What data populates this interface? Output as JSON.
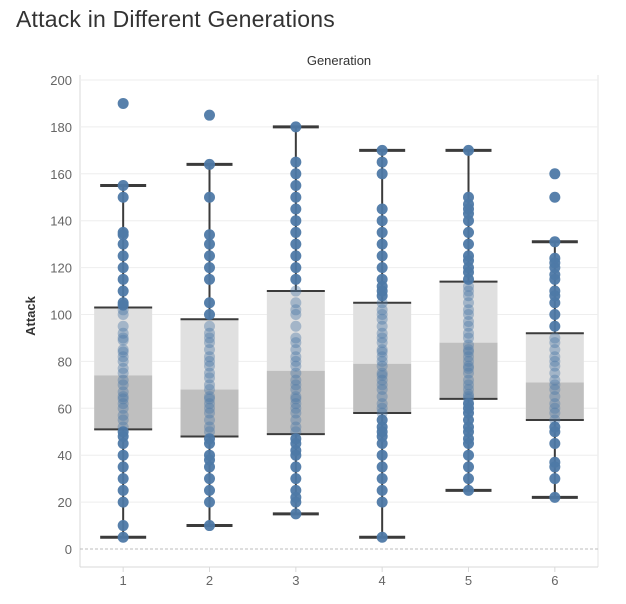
{
  "title": "Attack in Different Generations",
  "colors": {
    "point": "#4e79a7",
    "box_upper": "#e0e0e0",
    "box_lower": "#bfbfbf",
    "whisker": "#3b3b3b",
    "grid": "#eeeeee",
    "zero_line": "#bdbdbd"
  },
  "chart_data": {
    "type": "box",
    "title": "Attack in Different Generations",
    "column_header": "Generation",
    "xlabel": "",
    "ylabel": "Attack",
    "ylim": [
      0,
      200
    ],
    "yticks": [
      0,
      20,
      40,
      60,
      80,
      100,
      120,
      140,
      160,
      180,
      200
    ],
    "categories": [
      "1",
      "2",
      "3",
      "4",
      "5",
      "6"
    ],
    "grid": true,
    "boxes": [
      {
        "category": "1",
        "whisker_low": 5,
        "q1": 51,
        "median": 74,
        "q3": 103,
        "whisker_high": 155
      },
      {
        "category": "2",
        "whisker_low": 10,
        "q1": 48,
        "median": 68,
        "q3": 98,
        "whisker_high": 164
      },
      {
        "category": "3",
        "whisker_low": 15,
        "q1": 49,
        "median": 76,
        "q3": 110,
        "whisker_high": 180
      },
      {
        "category": "4",
        "whisker_low": 5,
        "q1": 58,
        "median": 79,
        "q3": 105,
        "whisker_high": 170
      },
      {
        "category": "5",
        "whisker_low": 25,
        "q1": 64,
        "median": 88,
        "q3": 114,
        "whisker_high": 170
      },
      {
        "category": "6",
        "whisker_low": 22,
        "q1": 55,
        "median": 71,
        "q3": 92,
        "whisker_high": 131
      }
    ],
    "points": [
      [
        5,
        10,
        20,
        25,
        30,
        35,
        40,
        45,
        48,
        50,
        52,
        55,
        57,
        60,
        62,
        64,
        65,
        67,
        70,
        72,
        75,
        77,
        80,
        82,
        84,
        85,
        89,
        90,
        92,
        95,
        100,
        102,
        104,
        105,
        110,
        115,
        120,
        125,
        130,
        134,
        135,
        150,
        155,
        190
      ],
      [
        10,
        20,
        25,
        30,
        35,
        38,
        40,
        45,
        47,
        50,
        52,
        55,
        58,
        60,
        62,
        64,
        65,
        68,
        70,
        73,
        75,
        78,
        80,
        82,
        85,
        88,
        90,
        92,
        95,
        100,
        105,
        115,
        120,
        125,
        130,
        134,
        150,
        164,
        185
      ],
      [
        15,
        20,
        22,
        25,
        30,
        35,
        40,
        42,
        45,
        47,
        50,
        52,
        55,
        58,
        60,
        62,
        64,
        65,
        68,
        70,
        72,
        75,
        78,
        80,
        82,
        85,
        88,
        90,
        95,
        100,
        102,
        105,
        110,
        115,
        120,
        125,
        130,
        135,
        140,
        145,
        150,
        155,
        160,
        165,
        180
      ],
      [
        5,
        20,
        25,
        30,
        35,
        40,
        45,
        48,
        50,
        52,
        55,
        58,
        60,
        62,
        65,
        68,
        70,
        72,
        74,
        75,
        78,
        80,
        82,
        84,
        85,
        88,
        90,
        92,
        95,
        98,
        100,
        102,
        105,
        108,
        110,
        112,
        115,
        120,
        125,
        130,
        135,
        140,
        145,
        160,
        165,
        170
      ],
      [
        25,
        30,
        35,
        40,
        45,
        47,
        50,
        52,
        55,
        58,
        60,
        62,
        64,
        65,
        66,
        68,
        70,
        72,
        75,
        77,
        78,
        80,
        82,
        84,
        85,
        87,
        90,
        92,
        95,
        97,
        100,
        102,
        105,
        108,
        110,
        112,
        115,
        118,
        120,
        123,
        125,
        130,
        135,
        140,
        143,
        145,
        147,
        150,
        170
      ],
      [
        22,
        30,
        35,
        37,
        45,
        50,
        52,
        55,
        58,
        60,
        62,
        65,
        68,
        70,
        72,
        75,
        78,
        80,
        82,
        85,
        88,
        90,
        95,
        100,
        105,
        108,
        110,
        115,
        117,
        120,
        122,
        124,
        131,
        150,
        160
      ]
    ]
  }
}
